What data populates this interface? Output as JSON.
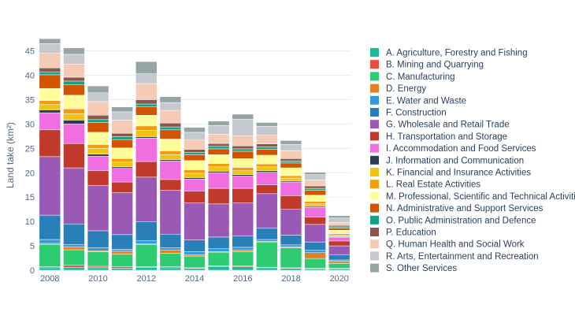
{
  "chart_data": {
    "type": "bar",
    "stacked": true,
    "title": "",
    "xlabel": "",
    "ylabel": "Land take (km²)",
    "ylim": [
      0,
      48
    ],
    "yticks": [
      0,
      5,
      10,
      15,
      20,
      25,
      30,
      35,
      40,
      45
    ],
    "categories": [
      "2008",
      "2009",
      "2010",
      "2011",
      "2012",
      "2013",
      "2014",
      "2015",
      "2016",
      "2017",
      "2018",
      "2019",
      "2020"
    ],
    "xtick_labels": [
      "2008",
      "2010",
      "2012",
      "2014",
      "2016",
      "2018",
      "2020"
    ],
    "xtick_values": [
      "2008",
      "2010",
      "2012",
      "2014",
      "2016",
      "2018",
      "2020"
    ],
    "legend_position": "right",
    "series": [
      {
        "name": "A. Agriculture, Forestry and Fishing",
        "color": "#1abc9c",
        "values": [
          0.5,
          0.6,
          0.5,
          0.4,
          0.6,
          0.5,
          0.4,
          0.8,
          0.7,
          0.5,
          0.4,
          0.3,
          0.3
        ]
      },
      {
        "name": "B. Mining and Quarrying",
        "color": "#e74c3c",
        "values": [
          0.2,
          0.4,
          0.3,
          0.3,
          0.1,
          0.2,
          0.1,
          0.1,
          0.2,
          0.1,
          0.1,
          0.1,
          0.1
        ]
      },
      {
        "name": "C. Manufacturing",
        "color": "#2ecc71",
        "values": [
          4.6,
          3.2,
          3.0,
          2.6,
          4.6,
          2.8,
          2.4,
          2.8,
          2.9,
          5.2,
          4.1,
          2.0,
          1.0
        ]
      },
      {
        "name": "D. Energy",
        "color": "#e67e22",
        "values": [
          0.2,
          0.6,
          0.2,
          0.6,
          0.1,
          0.6,
          0.3,
          0.1,
          0.3,
          0.1,
          0.2,
          1.2,
          0.4
        ]
      },
      {
        "name": "E. Water and Waste",
        "color": "#3498db",
        "values": [
          0.8,
          0.5,
          0.6,
          0.4,
          0.7,
          0.5,
          0.6,
          0.6,
          0.6,
          0.4,
          0.4,
          0.5,
          0.3
        ]
      },
      {
        "name": "F. Construction",
        "color": "#2980b9",
        "values": [
          5.0,
          4.2,
          3.5,
          3.0,
          3.8,
          2.8,
          2.4,
          2.4,
          2.3,
          2.3,
          2.0,
          1.7,
          1.1
        ]
      },
      {
        "name": "G. Wholesale and Retail Trade",
        "color": "#9b59b6",
        "values": [
          12.0,
          11.5,
          9.3,
          8.6,
          9.2,
          9.0,
          7.6,
          6.8,
          6.8,
          7.1,
          5.3,
          3.6,
          1.8
        ]
      },
      {
        "name": "H. Transportation and Storage",
        "color": "#c0392b",
        "values": [
          5.5,
          5.0,
          3.0,
          2.2,
          3.2,
          2.2,
          2.4,
          3.2,
          3.0,
          1.8,
          2.8,
          1.5,
          1.0
        ]
      },
      {
        "name": "I. Accommodation and Food Services",
        "color": "#f06ee0",
        "values": [
          3.5,
          4.0,
          3.0,
          2.8,
          4.8,
          3.8,
          2.5,
          3.2,
          2.5,
          2.6,
          2.8,
          2.0,
          0.8
        ]
      },
      {
        "name": "J. Information and Communication",
        "color": "#2c3e50",
        "values": [
          0.6,
          0.8,
          0.4,
          0.3,
          0.3,
          0.3,
          0.3,
          0.3,
          0.3,
          0.3,
          0.2,
          0.2,
          0.1
        ]
      },
      {
        "name": "K. Financial and Insurance Activities",
        "color": "#f1c40f",
        "values": [
          1.1,
          1.3,
          1.2,
          1.0,
          1.3,
          1.0,
          0.9,
          0.9,
          0.8,
          0.8,
          0.6,
          0.5,
          0.3
        ]
      },
      {
        "name": "L. Real Estate Activities",
        "color": "#f39c12",
        "values": [
          0.8,
          1.0,
          0.8,
          0.7,
          0.9,
          0.8,
          0.7,
          0.7,
          0.7,
          0.6,
          0.5,
          0.5,
          0.3
        ]
      },
      {
        "name": "M. Professional, Scientific and Technical Activities",
        "color": "#fffd9a",
        "values": [
          2.5,
          2.8,
          2.5,
          2.2,
          2.2,
          2.4,
          1.9,
          1.8,
          1.8,
          1.8,
          1.6,
          1.3,
          0.7
        ]
      },
      {
        "name": "N. Administrative and Support Services",
        "color": "#d35400",
        "values": [
          2.8,
          2.2,
          2.0,
          1.7,
          1.7,
          1.9,
          1.2,
          1.2,
          1.5,
          1.2,
          1.0,
          1.0,
          0.4
        ]
      },
      {
        "name": "O. Public Administration and Defence",
        "color": "#16a085",
        "values": [
          0.6,
          0.7,
          0.6,
          0.6,
          0.6,
          0.6,
          0.5,
          0.5,
          0.5,
          0.5,
          0.4,
          0.4,
          0.3
        ]
      },
      {
        "name": "P. Education",
        "color": "#8c564b",
        "values": [
          0.8,
          0.8,
          0.9,
          0.7,
          0.9,
          0.8,
          0.6,
          0.6,
          0.6,
          0.6,
          0.5,
          0.5,
          0.3
        ]
      },
      {
        "name": "Q. Human Health and Social Work",
        "color": "#f5cbb5",
        "values": [
          3.0,
          2.7,
          2.8,
          2.7,
          3.3,
          2.6,
          1.9,
          1.9,
          2.1,
          1.8,
          1.6,
          1.2,
          0.6
        ]
      },
      {
        "name": "R. Arts, Entertainment and Recreation",
        "color": "#c5c9cf",
        "values": [
          2.0,
          2.0,
          1.8,
          1.7,
          2.0,
          1.6,
          1.6,
          1.8,
          3.4,
          1.8,
          1.3,
          1.1,
          0.9
        ]
      },
      {
        "name": "S. Other Services",
        "color": "#95a5a6",
        "values": [
          1.0,
          1.3,
          1.4,
          1.0,
          2.5,
          1.2,
          1.0,
          0.9,
          1.0,
          0.8,
          0.8,
          0.5,
          0.5
        ]
      }
    ]
  }
}
